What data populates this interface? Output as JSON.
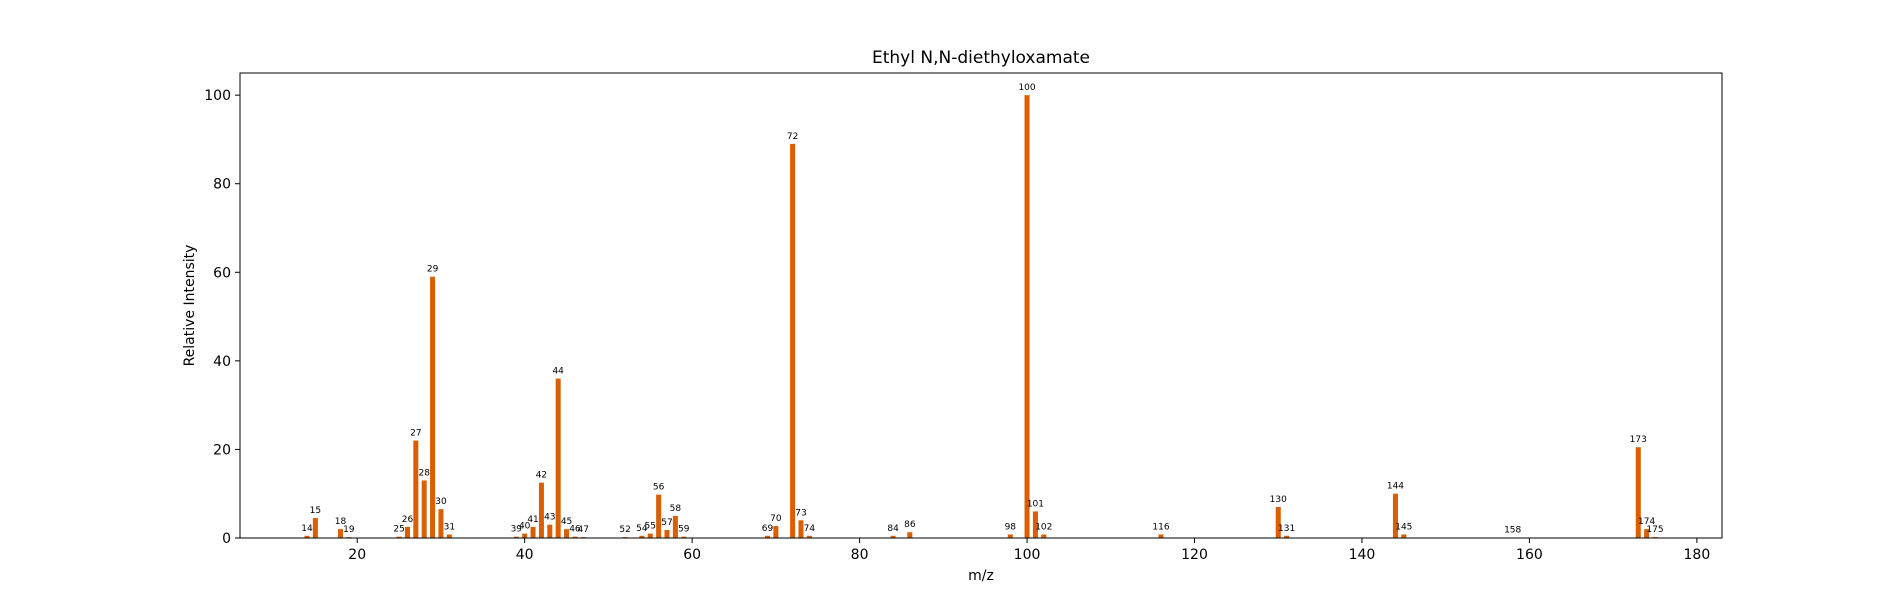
{
  "chart_data": {
    "type": "bar",
    "title": "Ethyl N,N-diethyloxamate",
    "xlabel": "m/z",
    "ylabel": "Relative Intensity",
    "xlim": [
      6,
      183
    ],
    "ylim": [
      0,
      105
    ],
    "xticks": [
      20,
      40,
      60,
      80,
      100,
      120,
      140,
      160,
      180
    ],
    "yticks": [
      0,
      20,
      40,
      60,
      80,
      100
    ],
    "bar_color": "#d95f02",
    "grid": false,
    "x": [
      14,
      15,
      18,
      19,
      25,
      26,
      27,
      28,
      29,
      30,
      31,
      39,
      40,
      41,
      42,
      43,
      44,
      45,
      46,
      47,
      52,
      54,
      55,
      56,
      57,
      58,
      59,
      69,
      70,
      72,
      73,
      74,
      84,
      86,
      98,
      100,
      101,
      102,
      116,
      130,
      131,
      144,
      145,
      158,
      173,
      174,
      175
    ],
    "values": [
      0.5,
      4.5,
      2.0,
      0.2,
      0.3,
      2.5,
      22.0,
      13.0,
      59.0,
      6.5,
      0.8,
      0.3,
      1.0,
      2.5,
      12.5,
      3.0,
      36.0,
      2.0,
      0.3,
      0.2,
      0.2,
      0.5,
      1.0,
      9.8,
      1.8,
      5.0,
      0.3,
      0.5,
      2.7,
      89.0,
      4.0,
      0.5,
      0.5,
      1.3,
      0.8,
      100.0,
      6.0,
      0.8,
      0.8,
      7.0,
      0.5,
      10.0,
      0.8,
      0.1,
      20.5,
      2.0,
      0.2
    ],
    "labels": [
      "14",
      "15",
      "18",
      "19",
      "25",
      "26",
      "27",
      "28",
      "29",
      "30",
      "31",
      "39",
      "40",
      "41",
      "42",
      "43",
      "44",
      "45",
      "46",
      "47",
      "52",
      "54",
      "55",
      "56",
      "57",
      "58",
      "59",
      "69",
      "70",
      "72",
      "73",
      "74",
      "84",
      "86",
      "98",
      "100",
      "101",
      "102",
      "116",
      "130",
      "131",
      "144",
      "145",
      "158",
      "173",
      "174",
      "175"
    ]
  }
}
